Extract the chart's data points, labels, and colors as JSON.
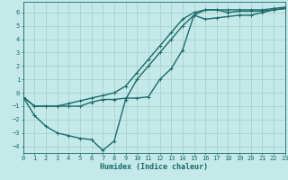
{
  "title": "",
  "xlabel": "Humidex (Indice chaleur)",
  "ylabel": "",
  "bg_color": "#c5e8e8",
  "line_color": "#1a6b6b",
  "grid_color": "#a8cccc",
  "line1_x": [
    0,
    1,
    2,
    3,
    4,
    5,
    6,
    7,
    8,
    9,
    10,
    11,
    12,
    13,
    14,
    15,
    16,
    17,
    18,
    19,
    20,
    21,
    22,
    23
  ],
  "line1_y": [
    -0.3,
    -1.0,
    -1.0,
    -1.0,
    -1.0,
    -1.0,
    -0.7,
    -0.5,
    -0.5,
    -0.4,
    -0.4,
    -0.3,
    1.0,
    1.8,
    3.2,
    5.8,
    6.2,
    6.2,
    6.0,
    6.1,
    6.1,
    6.1,
    6.2,
    6.3
  ],
  "line2_x": [
    0,
    1,
    2,
    3,
    4,
    5,
    6,
    7,
    8,
    9,
    10,
    11,
    12,
    13,
    14,
    15,
    16,
    17,
    18,
    19,
    20,
    21,
    22,
    23
  ],
  "line2_y": [
    -0.3,
    -1.7,
    -2.5,
    -3.0,
    -3.2,
    -3.4,
    -3.5,
    -4.3,
    -3.6,
    -0.5,
    1.0,
    2.0,
    3.0,
    4.0,
    5.0,
    5.8,
    5.5,
    5.6,
    5.7,
    5.8,
    5.8,
    6.0,
    6.2,
    6.3
  ],
  "line3_x": [
    0,
    1,
    2,
    3,
    4,
    5,
    6,
    7,
    8,
    9,
    10,
    11,
    12,
    13,
    14,
    15,
    16,
    17,
    18,
    19,
    20,
    21,
    22,
    23
  ],
  "line3_y": [
    -0.3,
    -1.0,
    -1.0,
    -1.0,
    -0.8,
    -0.6,
    -0.4,
    -0.2,
    0.0,
    0.5,
    1.5,
    2.5,
    3.5,
    4.5,
    5.5,
    6.0,
    6.2,
    6.2,
    6.2,
    6.2,
    6.2,
    6.2,
    6.3,
    6.4
  ],
  "xlim": [
    0,
    23
  ],
  "ylim": [
    -4.5,
    6.8
  ],
  "yticks": [
    -4,
    -3,
    -2,
    -1,
    0,
    1,
    2,
    3,
    4,
    5,
    6
  ],
  "xticks": [
    0,
    1,
    2,
    3,
    4,
    5,
    6,
    7,
    8,
    9,
    10,
    11,
    12,
    13,
    14,
    15,
    16,
    17,
    18,
    19,
    20,
    21,
    22,
    23
  ],
  "marker": "+",
  "linewidth": 1.0,
  "markersize": 3.5,
  "tick_fontsize": 5.0,
  "label_fontsize": 6.0
}
